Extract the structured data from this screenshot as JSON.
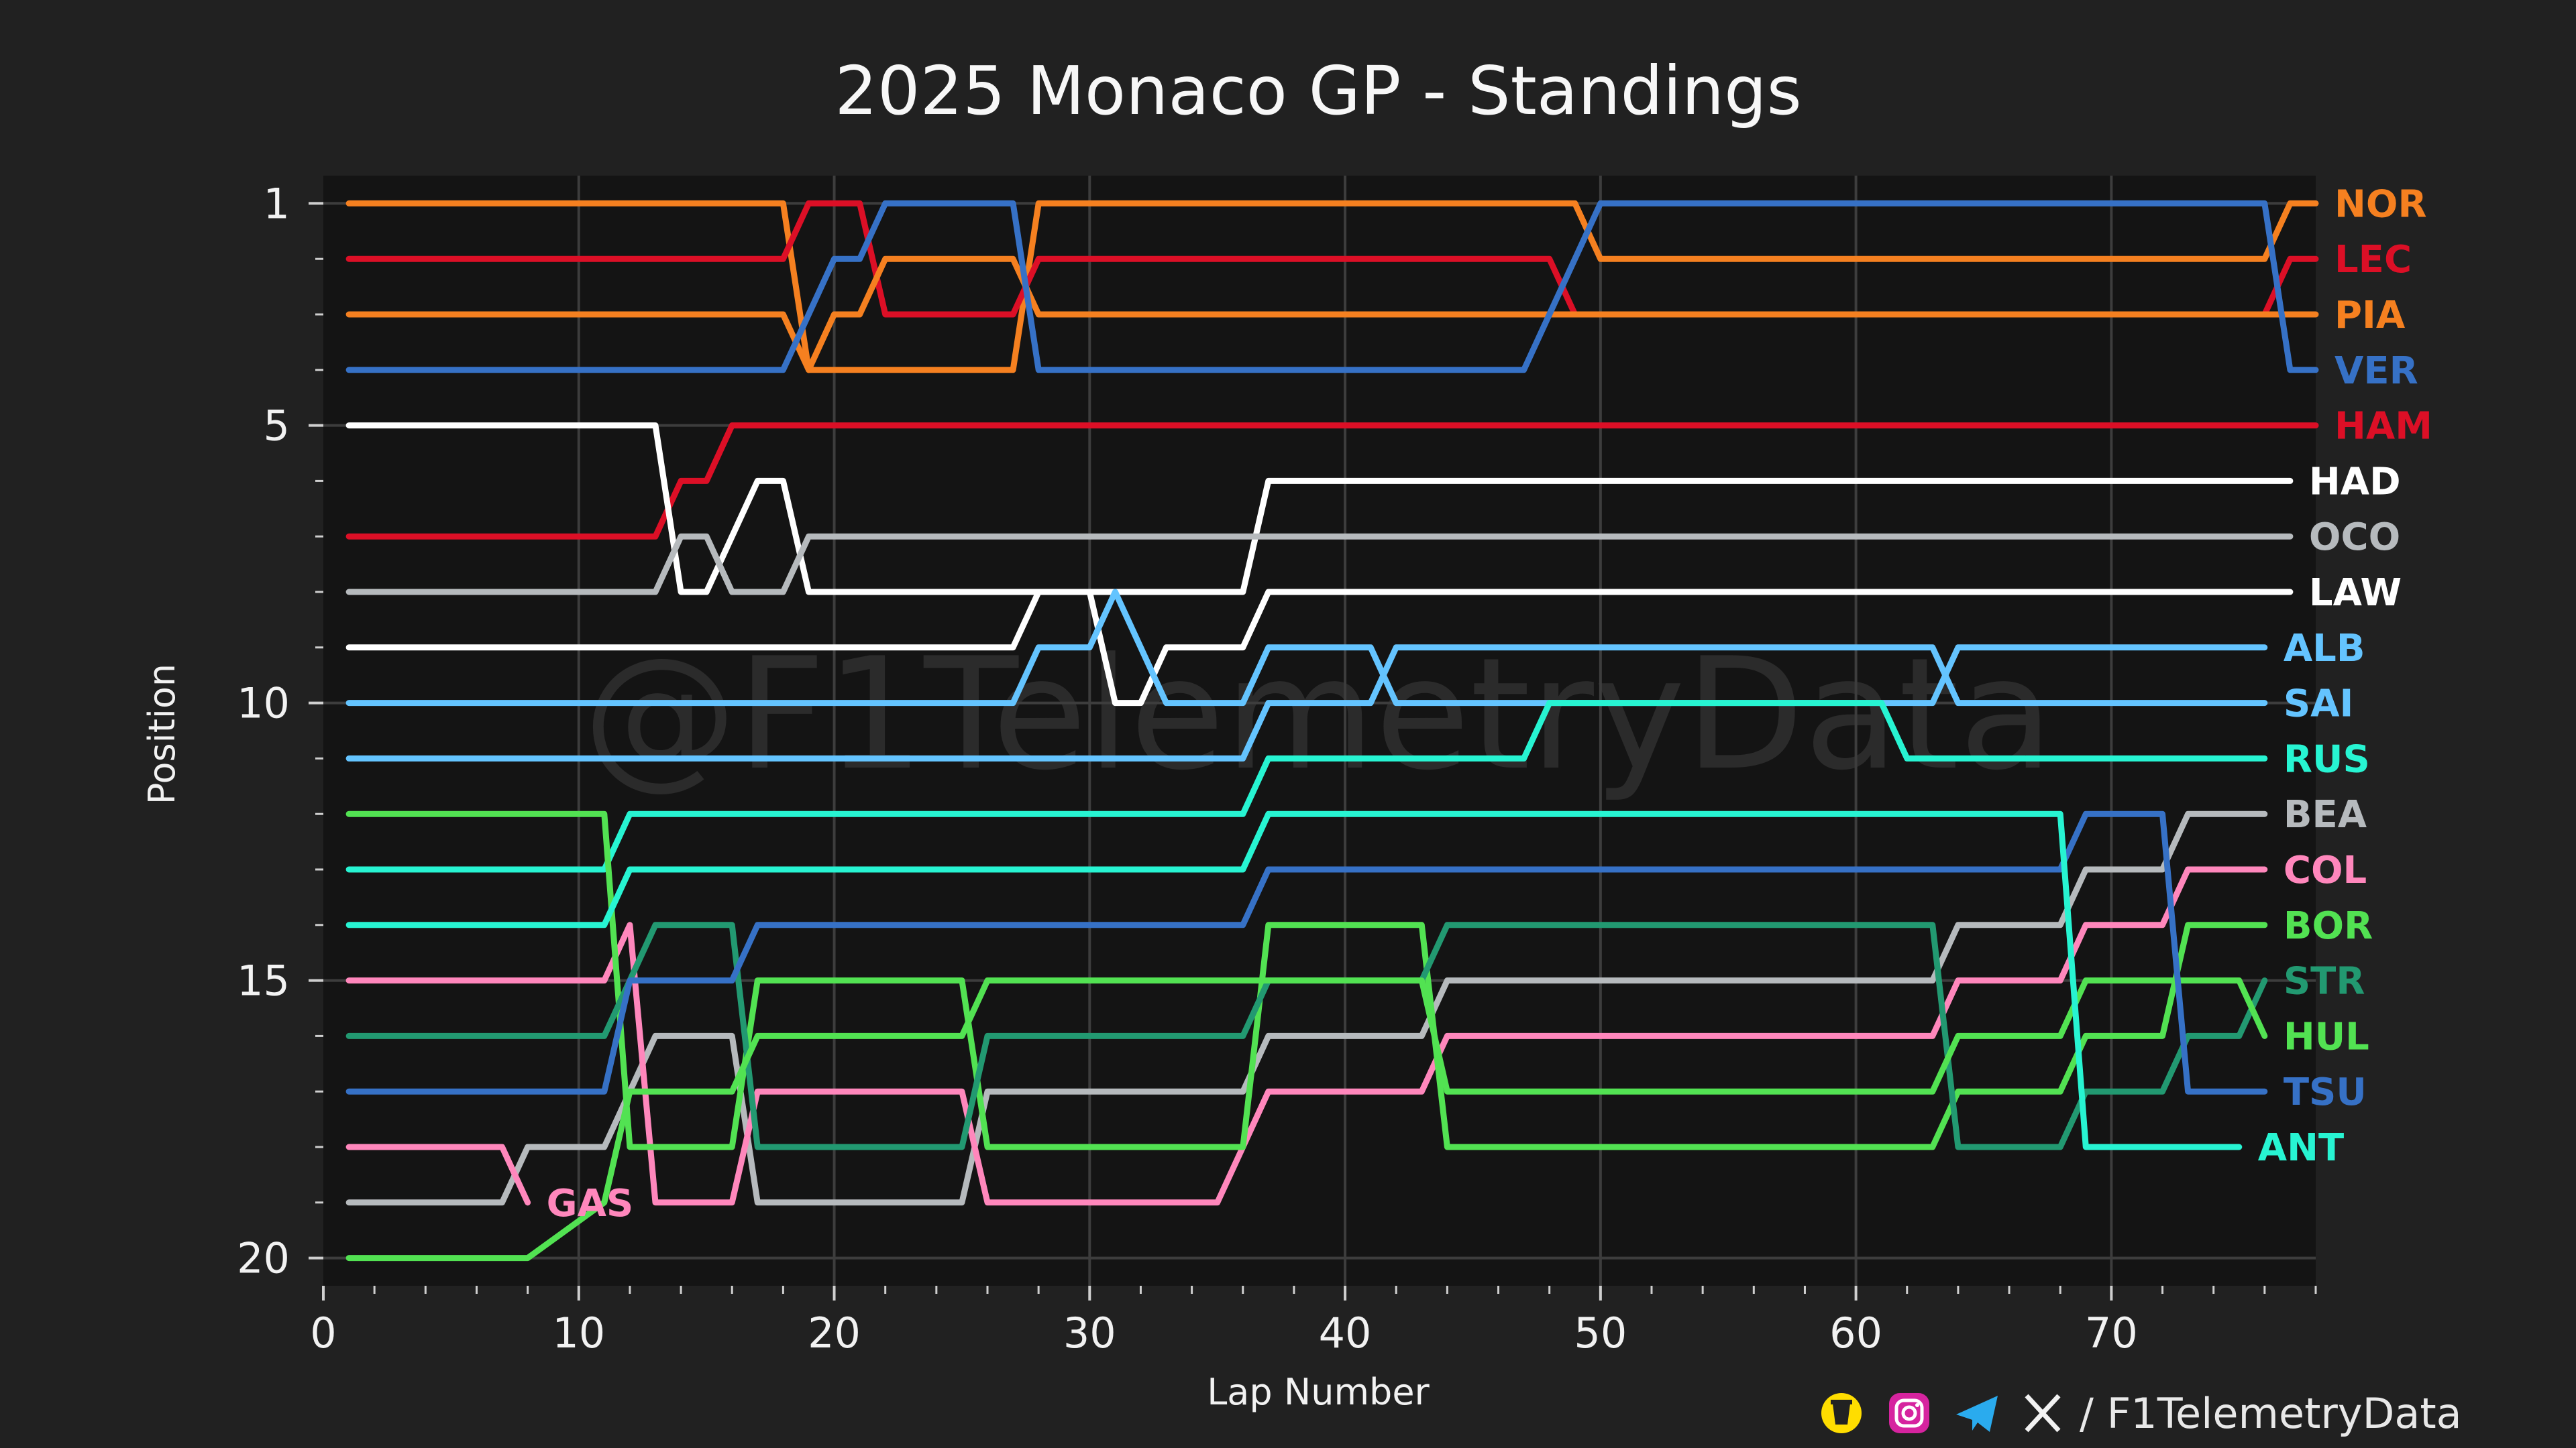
{
  "watermark": "@F1TelemetryData",
  "credit": {
    "handle": "/ F1TelemetryData",
    "icons": [
      "buymeacoffee-icon",
      "instagram-icon",
      "telegram-icon",
      "x-icon"
    ]
  },
  "colors": {
    "background": "#212121",
    "plot_background": "#141414",
    "grid": "#3d3d3d"
  },
  "chart_data": {
    "type": "line",
    "title": "2025 Monaco GP - Standings",
    "xlabel": "Lap Number",
    "ylabel": "Position",
    "xlim": [
      0,
      78
    ],
    "ylim": [
      20.5,
      0.5
    ],
    "y_inverted": true,
    "xticks": [
      0,
      10,
      20,
      30,
      40,
      50,
      60,
      70
    ],
    "yticks": [
      1,
      5,
      10,
      15,
      20
    ],
    "grid": true,
    "legend": "driver codes at line ends",
    "series": [
      {
        "name": "NOR",
        "color": "#F58020",
        "points": [
          [
            1,
            1
          ],
          [
            18,
            1
          ],
          [
            19,
            4
          ],
          [
            20,
            4
          ],
          [
            27,
            4
          ],
          [
            28,
            1
          ],
          [
            49,
            1
          ],
          [
            50,
            2
          ],
          [
            76,
            2
          ],
          [
            77,
            1
          ],
          [
            78,
            1
          ]
        ]
      },
      {
        "name": "LEC",
        "color": "#DC0F26",
        "points": [
          [
            1,
            2
          ],
          [
            18,
            2
          ],
          [
            19,
            1
          ],
          [
            21,
            1
          ],
          [
            22,
            3
          ],
          [
            27,
            3
          ],
          [
            28,
            2
          ],
          [
            48,
            2
          ],
          [
            49,
            3
          ],
          [
            76,
            3
          ],
          [
            77,
            2
          ],
          [
            78,
            2
          ]
        ]
      },
      {
        "name": "PIA",
        "color": "#F58020",
        "points": [
          [
            1,
            3
          ],
          [
            18,
            3
          ],
          [
            19,
            4
          ],
          [
            20,
            3
          ],
          [
            21,
            3
          ],
          [
            22,
            2
          ],
          [
            27,
            2
          ],
          [
            28,
            3
          ],
          [
            76,
            3
          ],
          [
            77,
            3
          ],
          [
            78,
            3
          ]
        ]
      },
      {
        "name": "VER",
        "color": "#3671C6",
        "points": [
          [
            1,
            4
          ],
          [
            18,
            4
          ],
          [
            20,
            2
          ],
          [
            21,
            2
          ],
          [
            22,
            1
          ],
          [
            27,
            1
          ],
          [
            28,
            4
          ],
          [
            47,
            4
          ],
          [
            50,
            1
          ],
          [
            76,
            1
          ],
          [
            77,
            4
          ],
          [
            78,
            4
          ]
        ]
      },
      {
        "name": "HAM",
        "color": "#DC0F26",
        "points": [
          [
            1,
            7
          ],
          [
            13,
            7
          ],
          [
            14,
            6
          ],
          [
            15,
            6
          ],
          [
            16,
            5
          ],
          [
            78,
            5
          ]
        ]
      },
      {
        "name": "HAD",
        "color": "#FFFFFF",
        "points": [
          [
            1,
            5
          ],
          [
            13,
            5
          ],
          [
            14,
            8
          ],
          [
            15,
            8
          ],
          [
            16,
            7
          ],
          [
            17,
            6
          ],
          [
            18,
            6
          ],
          [
            19,
            8
          ],
          [
            36,
            8
          ],
          [
            37,
            6
          ],
          [
            77,
            6
          ]
        ]
      },
      {
        "name": "OCO",
        "color": "#B6BABD",
        "points": [
          [
            1,
            8
          ],
          [
            13,
            8
          ],
          [
            14,
            7
          ],
          [
            15,
            7
          ],
          [
            16,
            8
          ],
          [
            18,
            8
          ],
          [
            19,
            7
          ],
          [
            36,
            7
          ],
          [
            37,
            7
          ],
          [
            77,
            7
          ]
        ]
      },
      {
        "name": "LAW",
        "color": "#FFFFFF",
        "points": [
          [
            1,
            9
          ],
          [
            27,
            9
          ],
          [
            28,
            8
          ],
          [
            30,
            8
          ],
          [
            31,
            10
          ],
          [
            32,
            10
          ],
          [
            33,
            9
          ],
          [
            35,
            9
          ],
          [
            36,
            9
          ],
          [
            37,
            8
          ],
          [
            77,
            8
          ]
        ]
      },
      {
        "name": "ALB",
        "color": "#64C4FF",
        "points": [
          [
            1,
            10
          ],
          [
            27,
            10
          ],
          [
            28,
            9
          ],
          [
            30,
            9
          ],
          [
            31,
            8
          ],
          [
            33,
            10
          ],
          [
            36,
            10
          ],
          [
            37,
            9
          ],
          [
            41,
            9
          ],
          [
            42,
            10
          ],
          [
            47,
            10
          ],
          [
            48,
            10
          ],
          [
            63,
            10
          ],
          [
            64,
            9
          ],
          [
            76,
            9
          ]
        ]
      },
      {
        "name": "SAI",
        "color": "#64C4FF",
        "points": [
          [
            1,
            11
          ],
          [
            36,
            11
          ],
          [
            37,
            10
          ],
          [
            41,
            10
          ],
          [
            42,
            9
          ],
          [
            63,
            9
          ],
          [
            64,
            10
          ],
          [
            76,
            10
          ]
        ]
      },
      {
        "name": "RUS",
        "color": "#27F4D2",
        "points": [
          [
            1,
            13
          ],
          [
            11,
            13
          ],
          [
            12,
            12
          ],
          [
            36,
            12
          ],
          [
            37,
            11
          ],
          [
            47,
            11
          ],
          [
            48,
            10
          ],
          [
            61,
            10
          ],
          [
            62,
            11
          ],
          [
            76,
            11
          ]
        ]
      },
      {
        "name": "BEA",
        "color": "#B6BABD",
        "points": [
          [
            1,
            19
          ],
          [
            7,
            19
          ],
          [
            8,
            18
          ],
          [
            11,
            18
          ],
          [
            13,
            16
          ],
          [
            16,
            16
          ],
          [
            17,
            19
          ],
          [
            25,
            19
          ],
          [
            26,
            17
          ],
          [
            36,
            17
          ],
          [
            37,
            16
          ],
          [
            43,
            16
          ],
          [
            44,
            15
          ],
          [
            63,
            15
          ],
          [
            64,
            14
          ],
          [
            68,
            14
          ],
          [
            69,
            13
          ],
          [
            72,
            13
          ],
          [
            73,
            12
          ],
          [
            76,
            12
          ]
        ]
      },
      {
        "name": "COL",
        "color": "#FF87BC",
        "points": [
          [
            1,
            15
          ],
          [
            11,
            15
          ],
          [
            12,
            14
          ],
          [
            13,
            19
          ],
          [
            16,
            19
          ],
          [
            17,
            17
          ],
          [
            25,
            17
          ],
          [
            26,
            19
          ],
          [
            35,
            19
          ],
          [
            36,
            18
          ],
          [
            37,
            17
          ],
          [
            43,
            17
          ],
          [
            44,
            16
          ],
          [
            63,
            16
          ],
          [
            64,
            15
          ],
          [
            68,
            15
          ],
          [
            69,
            14
          ],
          [
            72,
            14
          ],
          [
            73,
            13
          ],
          [
            76,
            13
          ]
        ]
      },
      {
        "name": "BOR",
        "color": "#52E252",
        "points": [
          [
            1,
            12
          ],
          [
            11,
            12
          ],
          [
            12,
            18
          ],
          [
            13,
            18
          ],
          [
            16,
            18
          ],
          [
            17,
            15
          ],
          [
            25,
            15
          ],
          [
            26,
            18
          ],
          [
            36,
            18
          ],
          [
            37,
            14
          ],
          [
            43,
            14
          ],
          [
            44,
            18
          ],
          [
            63,
            18
          ],
          [
            64,
            17
          ],
          [
            68,
            17
          ],
          [
            69,
            16
          ],
          [
            72,
            16
          ],
          [
            73,
            14
          ],
          [
            76,
            14
          ]
        ]
      },
      {
        "name": "STR",
        "color": "#229971",
        "points": [
          [
            1,
            16
          ],
          [
            11,
            16
          ],
          [
            13,
            14
          ],
          [
            16,
            14
          ],
          [
            17,
            18
          ],
          [
            25,
            18
          ],
          [
            26,
            16
          ],
          [
            36,
            16
          ],
          [
            37,
            15
          ],
          [
            43,
            15
          ],
          [
            44,
            14
          ],
          [
            63,
            14
          ],
          [
            64,
            18
          ],
          [
            68,
            18
          ],
          [
            69,
            17
          ],
          [
            72,
            17
          ],
          [
            73,
            16
          ],
          [
            75,
            16
          ],
          [
            76,
            15
          ]
        ]
      },
      {
        "name": "HUL",
        "color": "#52E252",
        "points": [
          [
            1,
            20
          ],
          [
            8,
            20
          ],
          [
            11,
            19
          ],
          [
            12,
            17
          ],
          [
            16,
            17
          ],
          [
            17,
            16
          ],
          [
            25,
            16
          ],
          [
            26,
            15
          ],
          [
            36,
            15
          ],
          [
            37,
            15
          ],
          [
            43,
            15
          ],
          [
            44,
            17
          ],
          [
            63,
            17
          ],
          [
            64,
            16
          ],
          [
            68,
            16
          ],
          [
            69,
            15
          ],
          [
            72,
            15
          ],
          [
            73,
            15
          ],
          [
            75,
            15
          ],
          [
            76,
            16
          ]
        ]
      },
      {
        "name": "TSU",
        "color": "#3671C6",
        "points": [
          [
            1,
            17
          ],
          [
            11,
            17
          ],
          [
            12,
            15
          ],
          [
            16,
            15
          ],
          [
            17,
            14
          ],
          [
            36,
            14
          ],
          [
            37,
            13
          ],
          [
            68,
            13
          ],
          [
            69,
            12
          ],
          [
            72,
            12
          ],
          [
            73,
            17
          ],
          [
            76,
            17
          ]
        ]
      },
      {
        "name": "ANT",
        "color": "#27F4D2",
        "points": [
          [
            1,
            14
          ],
          [
            11,
            14
          ],
          [
            12,
            13
          ],
          [
            36,
            13
          ],
          [
            37,
            12
          ],
          [
            68,
            12
          ],
          [
            69,
            18
          ],
          [
            75,
            18
          ]
        ]
      },
      {
        "name": "GAS",
        "color": "#FF87BC",
        "points": [
          [
            1,
            18
          ],
          [
            7,
            18
          ],
          [
            8,
            19
          ]
        ]
      }
    ],
    "driver_labels": [
      {
        "name": "NOR",
        "x": 78,
        "y": 1,
        "color": "#F58020"
      },
      {
        "name": "LEC",
        "x": 78,
        "y": 2,
        "color": "#DC0F26"
      },
      {
        "name": "PIA",
        "x": 78,
        "y": 3,
        "color": "#F58020"
      },
      {
        "name": "VER",
        "x": 78,
        "y": 4,
        "color": "#3671C6"
      },
      {
        "name": "HAM",
        "x": 78,
        "y": 5,
        "color": "#DC0F26"
      },
      {
        "name": "HAD",
        "x": 77,
        "y": 6,
        "color": "#FFFFFF"
      },
      {
        "name": "OCO",
        "x": 77,
        "y": 7,
        "color": "#B6BABD"
      },
      {
        "name": "LAW",
        "x": 77,
        "y": 8,
        "color": "#FFFFFF"
      },
      {
        "name": "ALB",
        "x": 76,
        "y": 9,
        "color": "#64C4FF"
      },
      {
        "name": "SAI",
        "x": 76,
        "y": 10,
        "color": "#64C4FF"
      },
      {
        "name": "RUS",
        "x": 76,
        "y": 11,
        "color": "#27F4D2"
      },
      {
        "name": "BEA",
        "x": 76,
        "y": 12,
        "color": "#B6BABD"
      },
      {
        "name": "COL",
        "x": 76,
        "y": 13,
        "color": "#FF87BC"
      },
      {
        "name": "BOR",
        "x": 76,
        "y": 14,
        "color": "#52E252"
      },
      {
        "name": "STR",
        "x": 76,
        "y": 15,
        "color": "#229971"
      },
      {
        "name": "HUL",
        "x": 76,
        "y": 16,
        "color": "#52E252"
      },
      {
        "name": "TSU",
        "x": 76,
        "y": 17,
        "color": "#3671C6"
      },
      {
        "name": "ANT",
        "x": 75,
        "y": 18,
        "color": "#27F4D2"
      },
      {
        "name": "GAS",
        "x": 8,
        "y": 19,
        "color": "#FF87BC"
      }
    ]
  }
}
